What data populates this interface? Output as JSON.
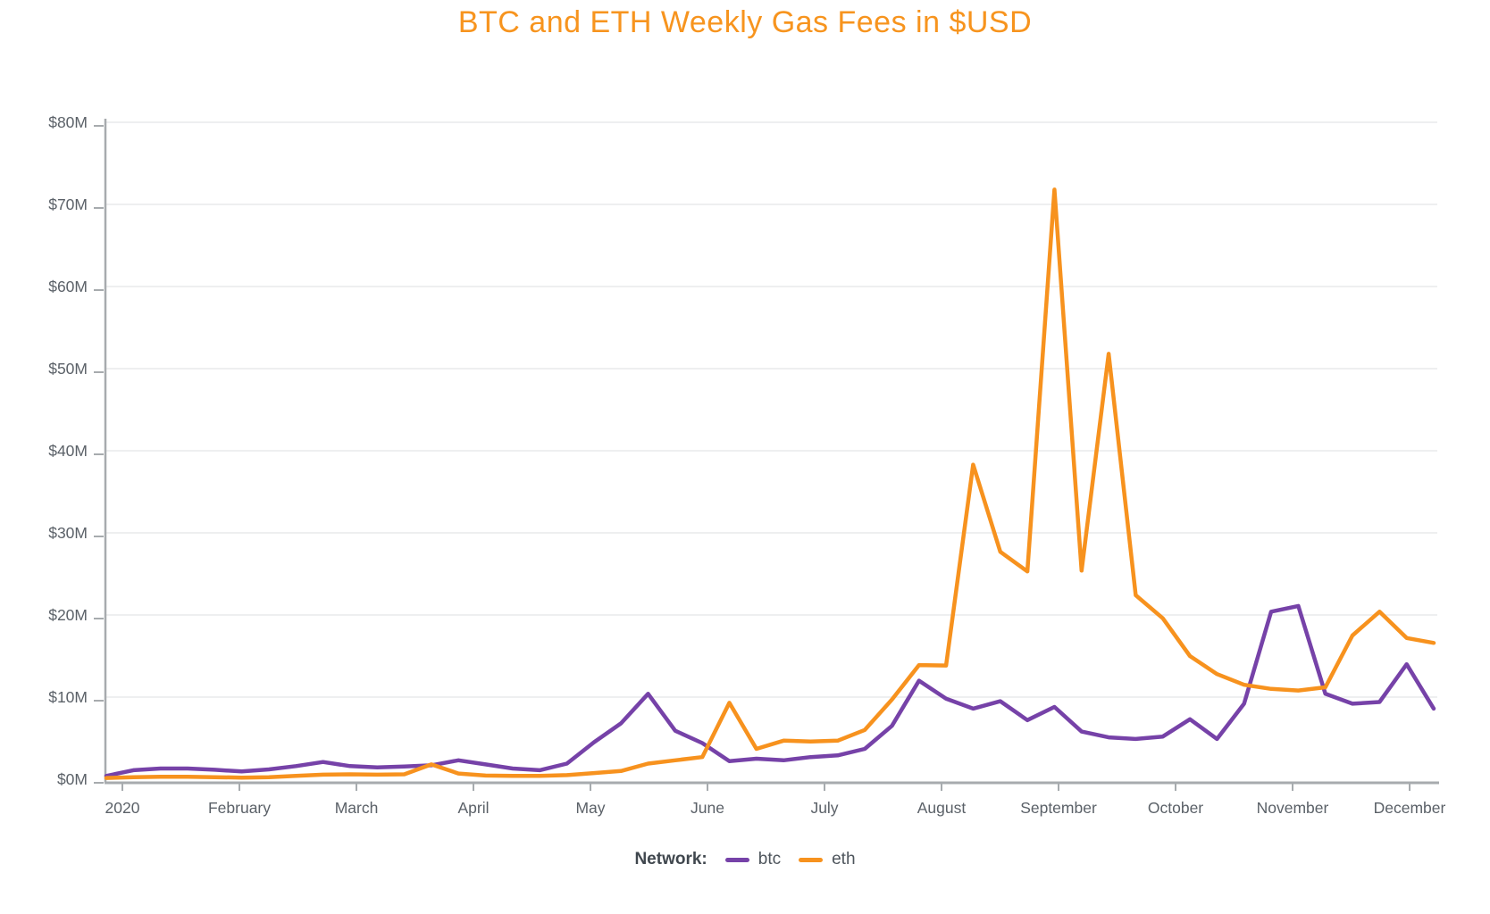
{
  "title": "BTC and ETH Weekly Gas Fees in $USD",
  "colors": {
    "title": "#F7941E",
    "btc": "#7642A8",
    "eth": "#F7921E",
    "axis_text": "#5B6168",
    "axis_line": "#A7ABAE",
    "gridline": "#E9EAEB",
    "legend_label_text": "#40474E",
    "legend_item_text": "#4E555C",
    "background": "#FFFFFF"
  },
  "legend": {
    "label": "Network:",
    "items": [
      {
        "name": "btc",
        "color": "#7642A8"
      },
      {
        "name": "eth",
        "color": "#F7921E"
      }
    ]
  },
  "chart_data": {
    "type": "line",
    "title": "BTC and ETH Weekly Gas Fees in $USD",
    "xlabel": "",
    "ylabel": "",
    "x_unit": "week (year 2020)",
    "grid": true,
    "legend_position": "bottom",
    "ylim": [
      0,
      80
    ],
    "y_tick_step_musd": 10,
    "y_tick_labels": [
      "$0M",
      "$10M",
      "$20M",
      "$30M",
      "$40M",
      "$50M",
      "$60M",
      "$70M",
      "$80M"
    ],
    "x_tick_labels": [
      "2020",
      "February",
      "March",
      "April",
      "May",
      "June",
      "July",
      "August",
      "September",
      "October",
      "November",
      "December"
    ],
    "x": [
      1,
      2,
      3,
      4,
      5,
      6,
      7,
      8,
      9,
      10,
      11,
      12,
      13,
      14,
      15,
      16,
      17,
      18,
      19,
      20,
      21,
      22,
      23,
      24,
      25,
      26,
      27,
      28,
      29,
      30,
      31,
      32,
      33,
      34,
      35,
      36,
      37,
      38,
      39,
      40,
      41,
      42,
      43,
      44,
      45,
      46,
      47,
      48,
      49,
      50
    ],
    "series": [
      {
        "name": "btc",
        "color": "#7642A8",
        "values_musd": [
          0.4,
          1.1,
          1.3,
          1.3,
          1.15,
          0.95,
          1.2,
          1.6,
          2.1,
          1.6,
          1.45,
          1.55,
          1.7,
          2.3,
          1.8,
          1.3,
          1.1,
          1.9,
          4.5,
          6.8,
          10.4,
          5.9,
          4.4,
          2.2,
          2.5,
          2.3,
          2.7,
          2.9,
          3.7,
          6.5,
          12.0,
          9.8,
          8.6,
          9.5,
          7.2,
          8.8,
          5.8,
          5.1,
          4.9,
          5.2,
          7.3,
          4.9,
          9.2,
          20.4,
          21.1,
          10.4,
          9.2,
          9.4,
          14.0,
          8.6
        ]
      },
      {
        "name": "eth",
        "color": "#F7921E",
        "values_musd": [
          0.15,
          0.25,
          0.3,
          0.3,
          0.25,
          0.2,
          0.25,
          0.4,
          0.55,
          0.6,
          0.55,
          0.6,
          1.8,
          0.7,
          0.45,
          0.4,
          0.4,
          0.5,
          0.75,
          1.0,
          1.9,
          2.3,
          2.7,
          9.3,
          3.7,
          4.7,
          4.6,
          4.7,
          6.0,
          9.7,
          13.9,
          13.85,
          38.3,
          27.7,
          25.3,
          71.8,
          25.4,
          51.8,
          22.4,
          19.6,
          15.0,
          12.8,
          11.5,
          11.0,
          10.8,
          11.2,
          17.5,
          20.4,
          17.2,
          16.6
        ]
      }
    ]
  }
}
